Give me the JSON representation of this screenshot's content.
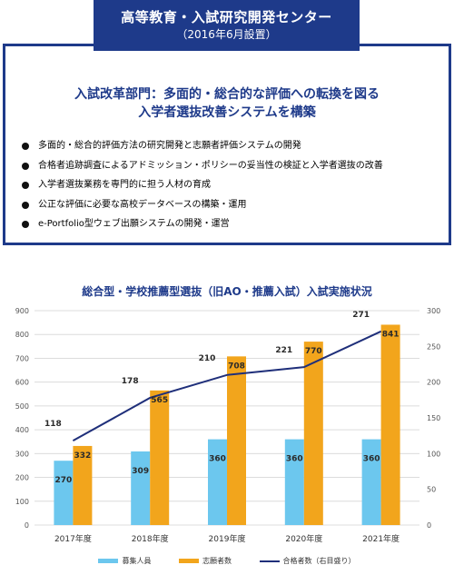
{
  "header": {
    "title": "高等教育・入試研究開発センター",
    "subtitle": "（2016年6月設置）"
  },
  "headline": {
    "line1": "入試改革部門：多面的・総合的な評価への転換を図る",
    "line2": "入学者選抜改善システムを構築"
  },
  "bullets": [
    "多面的・総合的評価方法の研究開発と志願者評価システムの開発",
    "合格者追跡調査によるアドミッション・ポリシーの妥当性の検証と入学者選抜の改善",
    "入学者選抜業務を専門的に担う人材の育成",
    "公正な評価に必要な高校データベースの構築・運用",
    "e-Portfolio型ウェブ出願システムの開発・運営"
  ],
  "colors": {
    "navy": "#1e3a8a",
    "recruit": "#6cc7ee",
    "applicants": "#f2a51c",
    "line": "#1f2f7a"
  },
  "chart_data": {
    "type": "bar",
    "title": "総合型・学校推薦型選抜（旧AO・推薦入試）入試実施状況",
    "categories": [
      "2017年度",
      "2018年度",
      "2019年度",
      "2020年度",
      "2021年度"
    ],
    "series": [
      {
        "name": "募集人員",
        "type": "bar",
        "axis": "left",
        "values": [
          270,
          309,
          360,
          360,
          360
        ]
      },
      {
        "name": "志願者数",
        "type": "bar",
        "axis": "left",
        "values": [
          332,
          565,
          708,
          770,
          841
        ]
      },
      {
        "name": "合格者数（右目盛り）",
        "type": "line",
        "axis": "right",
        "values": [
          118,
          178,
          210,
          221,
          271
        ]
      }
    ],
    "ylim_left": [
      0,
      900
    ],
    "ylim_right": [
      0,
      300
    ],
    "yticks_left": [
      "0",
      "100",
      "200",
      "300",
      "400",
      "500",
      "600",
      "700",
      "800",
      "900"
    ],
    "yticks_right": [
      "0",
      "50",
      "100",
      "150",
      "200",
      "250",
      "300"
    ],
    "grid": true,
    "legend_position": "bottom"
  }
}
